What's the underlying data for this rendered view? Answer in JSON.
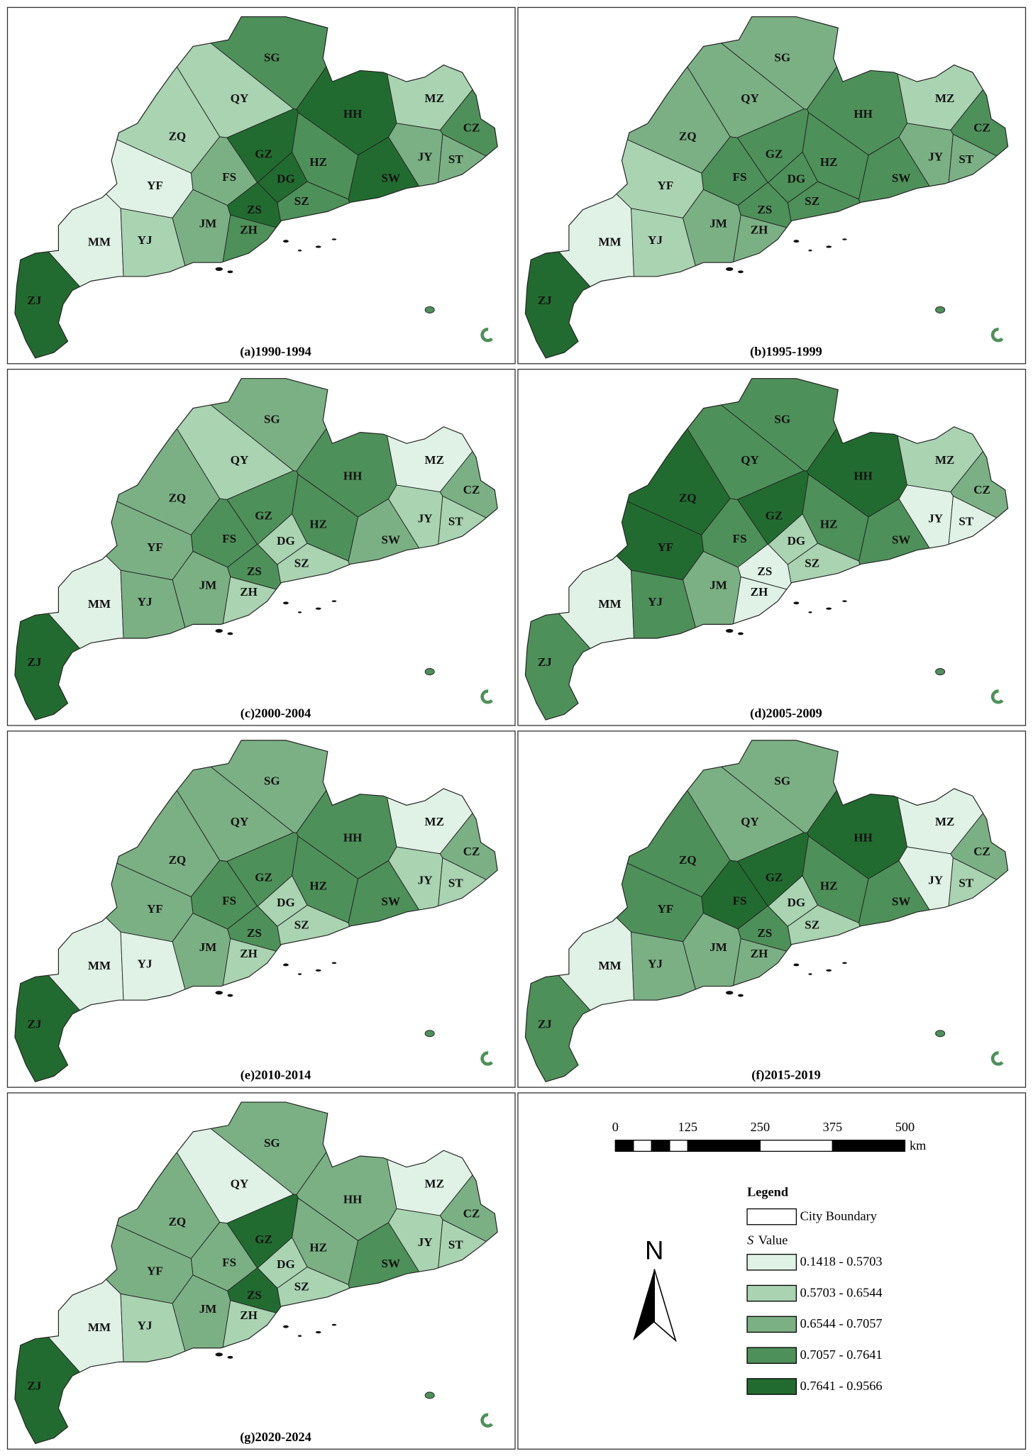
{
  "cities": [
    "SG",
    "QY",
    "HH",
    "MZ",
    "ZQ",
    "GZ",
    "HZ",
    "CZ",
    "JY",
    "ST",
    "FS",
    "DG",
    "SW",
    "YF",
    "SZ",
    "ZS",
    "ZH",
    "JM",
    "MM",
    "YJ",
    "ZJ"
  ],
  "panels": [
    {
      "caption": "(a)1990-1994",
      "classes": [
        3,
        1,
        4,
        1,
        1,
        4,
        3,
        3,
        2,
        2,
        2,
        4,
        4,
        0,
        3,
        4,
        3,
        2,
        0,
        1,
        4
      ]
    },
    {
      "caption": "(b)1995-1999",
      "classes": [
        2,
        2,
        3,
        1,
        2,
        3,
        3,
        3,
        2,
        2,
        3,
        3,
        3,
        1,
        3,
        3,
        2,
        2,
        0,
        1,
        4
      ]
    },
    {
      "caption": "(c)2000-2004",
      "classes": [
        2,
        1,
        3,
        0,
        2,
        3,
        3,
        2,
        1,
        1,
        3,
        1,
        2,
        2,
        1,
        3,
        1,
        2,
        0,
        2,
        4
      ]
    },
    {
      "caption": "(d)2005-2009",
      "classes": [
        3,
        3,
        4,
        1,
        4,
        4,
        3,
        2,
        0,
        0,
        3,
        1,
        3,
        4,
        1,
        0,
        0,
        2,
        0,
        3,
        3
      ]
    },
    {
      "caption": "(e)2010-2014",
      "classes": [
        2,
        2,
        3,
        0,
        2,
        3,
        3,
        2,
        1,
        1,
        3,
        1,
        3,
        2,
        1,
        3,
        1,
        2,
        0,
        0,
        4
      ]
    },
    {
      "caption": "(f)2015-2019",
      "classes": [
        2,
        2,
        4,
        0,
        3,
        4,
        3,
        2,
        0,
        1,
        4,
        1,
        3,
        3,
        1,
        3,
        2,
        2,
        0,
        2,
        3
      ]
    },
    {
      "caption": "(g)2020-2024",
      "classes": [
        2,
        0,
        2,
        0,
        2,
        4,
        2,
        2,
        1,
        1,
        2,
        1,
        3,
        2,
        1,
        4,
        1,
        2,
        0,
        1,
        4
      ]
    }
  ],
  "scale_bar": {
    "ticks": [
      0,
      125,
      250,
      375,
      500
    ],
    "unit": "km"
  },
  "north": "N",
  "legend": {
    "title": "Legend",
    "boundary": "City Boundary",
    "variable": "S",
    "variable_suffix": "Value",
    "classes": [
      {
        "label": "0.1418 - 0.5703",
        "color": "#dff2e5"
      },
      {
        "label": "0.5703 - 0.6544",
        "color": "#a9d3b1"
      },
      {
        "label": "0.6544 - 0.7057",
        "color": "#7bb084"
      },
      {
        "label": "0.7057 - 0.7641",
        "color": "#4e9059"
      },
      {
        "label": "0.7641 - 0.9566",
        "color": "#226b30"
      }
    ]
  }
}
